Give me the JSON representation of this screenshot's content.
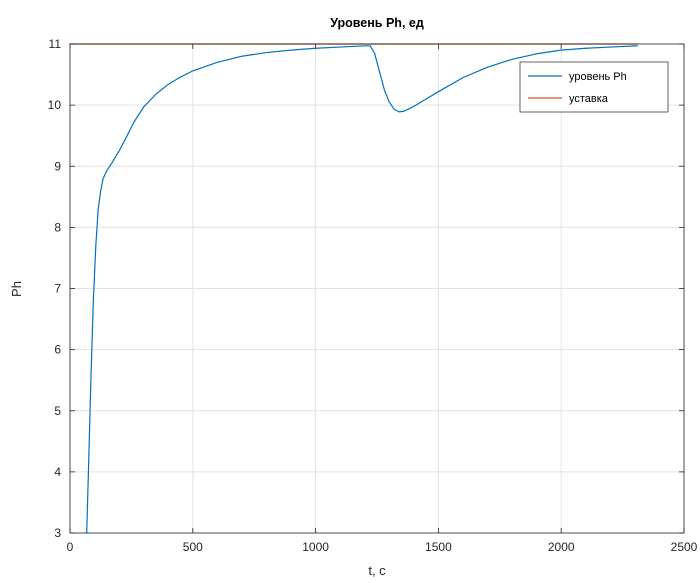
{
  "chart_data": {
    "type": "line",
    "title": "Уровень Ph, ед",
    "xlabel": "t, c",
    "ylabel": "Ph",
    "xlim": [
      0,
      2500
    ],
    "ylim": [
      3,
      11
    ],
    "xticks": [
      "0",
      "500",
      "1000",
      "1500",
      "2000",
      "2500"
    ],
    "yticks": [
      "3",
      "4",
      "5",
      "6",
      "7",
      "8",
      "9",
      "10",
      "11"
    ],
    "grid": true,
    "legend_position": "top-right",
    "series": [
      {
        "name": "уровень Ph",
        "color": "#0072BD",
        "x": [
          68,
          75,
          85,
          95,
          105,
          115,
          125,
          135,
          150,
          170,
          200,
          230,
          260,
          300,
          350,
          400,
          450,
          500,
          600,
          700,
          800,
          900,
          1000,
          1100,
          1150,
          1200,
          1222,
          1240,
          1260,
          1280,
          1300,
          1320,
          1340,
          1360,
          1380,
          1400,
          1450,
          1500,
          1600,
          1700,
          1800,
          1900,
          2000,
          2100,
          2200,
          2310
        ],
        "y": [
          3.0,
          4.0,
          5.5,
          6.8,
          7.7,
          8.3,
          8.6,
          8.8,
          8.93,
          9.05,
          9.25,
          9.48,
          9.72,
          9.97,
          10.18,
          10.34,
          10.46,
          10.56,
          10.7,
          10.8,
          10.86,
          10.9,
          10.93,
          10.95,
          10.96,
          10.97,
          10.97,
          10.85,
          10.55,
          10.25,
          10.05,
          9.93,
          9.89,
          9.9,
          9.94,
          9.98,
          10.1,
          10.22,
          10.45,
          10.62,
          10.75,
          10.84,
          10.9,
          10.93,
          10.95,
          10.97
        ]
      },
      {
        "name": "уставка",
        "color": "#D95319",
        "x": [
          0,
          2310
        ],
        "y": [
          11,
          11
        ]
      }
    ]
  }
}
